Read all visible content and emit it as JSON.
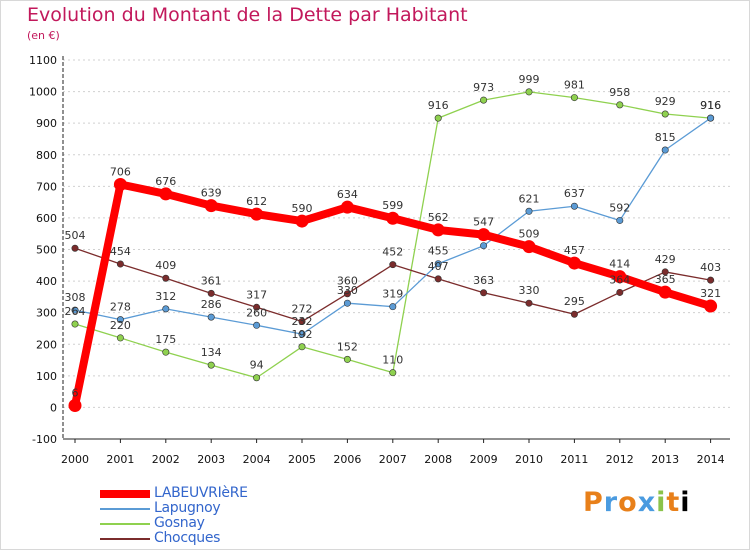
{
  "title": "Evolution du Montant de la Dette par Habitant",
  "unit": "(en €)",
  "logo": "Proxiti",
  "chart_data": {
    "type": "line",
    "title": "Evolution du Montant de la Dette par Habitant",
    "ylabel": "(en €)",
    "xlabel": "",
    "x": [
      "2000",
      "2001",
      "2002",
      "2003",
      "2004",
      "2005",
      "2006",
      "2007",
      "2008",
      "2009",
      "2010",
      "2011",
      "2012",
      "2013",
      "2014"
    ],
    "ylim": [
      -100,
      1100
    ],
    "yticks": [
      -100,
      0,
      100,
      200,
      300,
      400,
      500,
      600,
      700,
      800,
      900,
      1000,
      1100
    ],
    "grid": "horizontal dotted",
    "legend_position": "bottom-left",
    "series": [
      {
        "name": "LABEUVRIèRE",
        "color": "#ff0000",
        "values": [
          6,
          706,
          676,
          639,
          612,
          590,
          634,
          599,
          562,
          547,
          509,
          457,
          414,
          365,
          321
        ],
        "labels": [
          "6",
          "706",
          "676",
          "639",
          "612",
          "590",
          "634",
          "599",
          "562",
          "547",
          "509",
          "457",
          "414",
          "365",
          "321"
        ]
      },
      {
        "name": "Lapugnoy",
        "color": "#5b9bd5",
        "values": [
          308,
          278,
          312,
          286,
          260,
          232,
          330,
          319,
          455,
          512,
          621,
          637,
          592,
          815,
          916
        ],
        "labels": [
          "308",
          "278",
          "312",
          "286",
          "260",
          "232",
          "330",
          "319",
          "455",
          "",
          "621",
          "637",
          "592",
          "815",
          "916"
        ]
      },
      {
        "name": "Gosnay",
        "color": "#8fd14f",
        "values": [
          264,
          220,
          175,
          134,
          94,
          192,
          152,
          110,
          916,
          973,
          999,
          981,
          958,
          929,
          916
        ],
        "labels": [
          "264",
          "220",
          "175",
          "134",
          "94",
          "192",
          "152",
          "110",
          "916",
          "973",
          "999",
          "981",
          "958",
          "929",
          "916"
        ]
      },
      {
        "name": "Chocques",
        "color": "#7b2c2c",
        "values": [
          504,
          454,
          409,
          361,
          317,
          272,
          360,
          452,
          407,
          363,
          330,
          295,
          364,
          429,
          403
        ],
        "labels": [
          "504",
          "454",
          "409",
          "361",
          "317",
          "272",
          "360",
          "452",
          "407",
          "363",
          "330",
          "295",
          "364",
          "429",
          "403"
        ]
      }
    ]
  }
}
